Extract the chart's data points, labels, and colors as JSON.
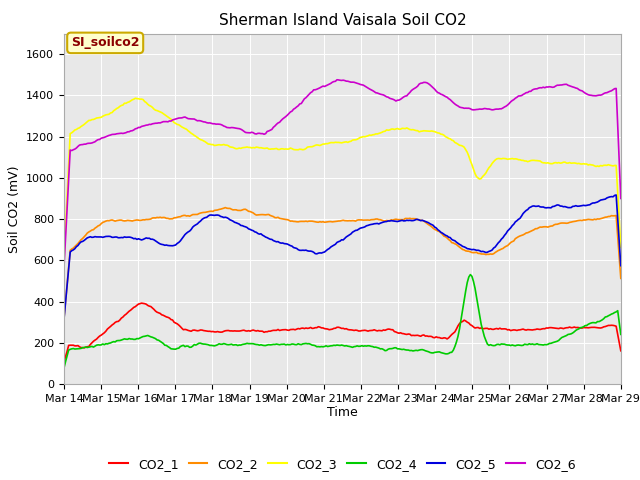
{
  "title": "Sherman Island Vaisala Soil CO2",
  "ylabel": "Soil CO2 (mV)",
  "xlabel": "Time",
  "legend_label": "SI_soilco2",
  "ylim": [
    0,
    1700
  ],
  "yticks": [
    0,
    200,
    400,
    600,
    800,
    1000,
    1200,
    1400,
    1600
  ],
  "x_labels": [
    "Mar 14",
    "Mar 15",
    "Mar 16",
    "Mar 17",
    "Mar 18",
    "Mar 19",
    "Mar 20",
    "Mar 21",
    "Mar 22",
    "Mar 23",
    "Mar 24",
    "Mar 25",
    "Mar 26",
    "Mar 27",
    "Mar 28",
    "Mar 29"
  ],
  "n_points": 360,
  "colors": {
    "CO2_1": "#ff0000",
    "CO2_2": "#ff8c00",
    "CO2_3": "#ffff00",
    "CO2_4": "#00cc00",
    "CO2_5": "#0000dd",
    "CO2_6": "#cc00cc"
  },
  "background_color": "#e8e8e8",
  "legend_box_facecolor": "#ffffcc",
  "legend_box_edgecolor": "#ccaa00",
  "title_fontsize": 11,
  "axis_label_fontsize": 9,
  "tick_fontsize": 8
}
